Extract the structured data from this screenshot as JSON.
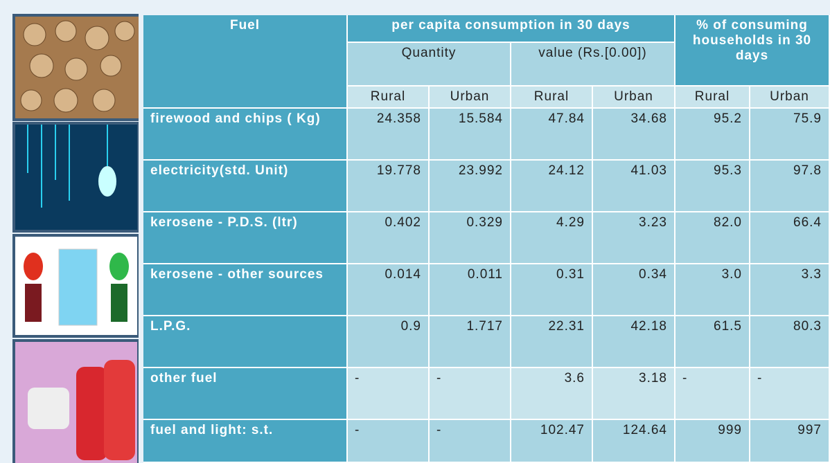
{
  "table": {
    "header": {
      "fuel": "Fuel",
      "per_capita": "per capita consumption in 30 days",
      "percent": "% of consuming households in 30 days",
      "quantity": "Quantity",
      "value": "value (Rs.[0.00])",
      "subcols": [
        "Rural",
        "Urban",
        "Rural",
        "Urban",
        "Rural",
        "Urban"
      ]
    },
    "rows": [
      {
        "label": "firewood and chips ( Kg)",
        "cells": [
          "24.358",
          "15.584",
          "47.84",
          "34.68",
          "95.2",
          "75.9"
        ]
      },
      {
        "label": "electricity(std. Unit)",
        "cells": [
          "19.778",
          "23.992",
          "24.12",
          "41.03",
          "95.3",
          "97.8"
        ]
      },
      {
        "label": "kerosene - P.D.S. (ltr)",
        "cells": [
          "0.402",
          "0.329",
          "4.29",
          "3.23",
          "82.0",
          "66.4"
        ]
      },
      {
        "label": "kerosene - other sources",
        "cells": [
          "0.014",
          "0.011",
          "0.31",
          "0.34",
          "3.0",
          "3.3"
        ]
      },
      {
        "label": "L.P.G.",
        "cells": [
          "0.9",
          "1.717",
          "22.31",
          "42.18",
          "61.5",
          "80.3"
        ]
      },
      {
        "label": "other fuel",
        "cells": [
          "-",
          "-",
          "3.6",
          "3.18",
          "-",
          "-"
        ]
      },
      {
        "label": "fuel and light: s.t.",
        "cells": [
          "-",
          "-",
          "102.47",
          "124.64",
          "999",
          "997"
        ]
      }
    ]
  }
}
